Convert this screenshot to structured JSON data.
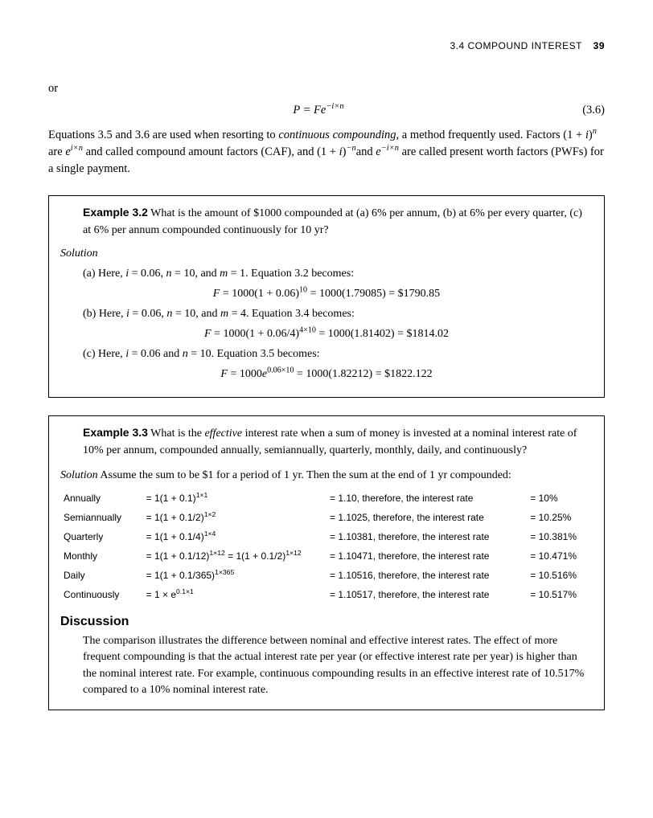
{
  "header": {
    "section": "3.4 COMPOUND INTEREST",
    "page": "39"
  },
  "lead": {
    "or": "or",
    "eq": "P = Fe",
    "eq_sup": "−i×n",
    "eq_num": "(3.6)",
    "p1a": "Equations 3.5 and 3.6 are used when resorting to ",
    "p1b": "continuous compounding",
    "p1c": ", a method frequently used. Factors (1 + ",
    "p1d": "i",
    "p1e": ")",
    "p1f": "n",
    "p1g": " are ",
    "p1h": "e",
    "p1i": "i×n",
    "p1j": " and called compound amount factors (CAF), and  (1 + ",
    "p1k": "i",
    "p1l": ")",
    "p1m": "−n",
    "p1n": "and ",
    "p1o": "e",
    "p1p": "−i×n",
    "p1q": " are called present worth factors (PWFs) for a single payment."
  },
  "ex32": {
    "label": "Example 3.2",
    "q": "  What is the amount of $1000 compounded at (a) 6% per annum, (b) at 6% per every quarter, (c) at 6% per annum compounded continuously for 10 yr?",
    "sol": "Solution",
    "a_t1": "(a) Here, ",
    "a_t2": "i",
    "a_t3": " = 0.06, ",
    "a_t4": "n",
    "a_t5": " = 10, and ",
    "a_t6": "m",
    "a_t7": " = 1. Equation 3.2 becomes:",
    "a_eq_pre": "F",
    "a_eq": " = 1000(1 + 0.06)",
    "a_eq_sup": "10",
    "a_eq_post": " = 1000(1.79085) = $1790.85",
    "b_t1": "(b) Here, ",
    "b_t2": "i",
    "b_t3": " = 0.06, ",
    "b_t4": "n",
    "b_t5": " = 10, and ",
    "b_t6": "m",
    "b_t7": " = 4. Equation 3.4 becomes:",
    "b_eq_pre": "F",
    "b_eq": " = 1000(1 + 0.06/4)",
    "b_eq_sup": "4×10",
    "b_eq_post": " = 1000(1.81402) = $1814.02",
    "c_t1": "(c) Here, ",
    "c_t2": "i",
    "c_t3": " = 0.06 and ",
    "c_t4": "n",
    "c_t5": " = 10. Equation 3.5 becomes:",
    "c_eq_pre": "F",
    "c_eq": " = 1000",
    "c_eq_e": "e",
    "c_eq_sup": "0.06×10",
    "c_eq_post": " = 1000(1.82212) = $1822.122"
  },
  "ex33": {
    "label": "Example 3.3",
    "q1": "  What is the ",
    "q_em": "effective",
    "q2": " interest rate when a sum of money is invested at a nominal interest rate of 10% per annum, compounded annually, semiannually, quarterly, monthly, daily, and continuously?",
    "sol_a": "Solution",
    "sol_b": "  Assume the sum to be $1 for a period of 1 yr. Then the sum at the end of 1 yr compounded:",
    "rows": [
      {
        "period": "Annually",
        "expr_a": "= 1(1 + 0.1)",
        "expr_sup": "1×1",
        "expr_b": "",
        "res": "= 1.10, therefore, the interest rate",
        "rate": "= 10%"
      },
      {
        "period": "Semiannually",
        "expr_a": "= 1(1 + 0.1/2)",
        "expr_sup": "1×2",
        "expr_b": "",
        "res": "= 1.1025, therefore, the interest rate",
        "rate": "= 10.25%"
      },
      {
        "period": "Quarterly",
        "expr_a": "= 1(1 + 0.1/4)",
        "expr_sup": "1×4",
        "expr_b": "",
        "res": "= 1.10381, therefore, the interest rate",
        "rate": "= 10.381%"
      },
      {
        "period": "Monthly",
        "expr_a": "= 1(1 + 0.1/12)",
        "expr_sup": "1×12",
        "expr_b": " = 1(1 + 0.1/2)",
        "expr_sup2": "1×12",
        "res": "= 1.10471, therefore, the interest rate",
        "rate": "= 10.471%"
      },
      {
        "period": "Daily",
        "expr_a": "= 1(1 + 0.1/365)",
        "expr_sup": "1×365",
        "expr_b": "",
        "res": "= 1.10516, therefore, the interest rate",
        "rate": "= 10.516%"
      },
      {
        "period": "Continuously",
        "expr_a": "= 1 × e",
        "expr_sup": "0.1×1",
        "expr_b": "",
        "res": "= 1.10517, therefore, the interest rate",
        "rate": "= 10.517%"
      }
    ],
    "disc_h": "Discussion",
    "disc_p": "The comparison illustrates the difference between nominal and effective interest rates. The effect of more frequent compounding is that the actual interest rate per year (or effective interest rate per year) is higher than the nominal interest rate. For example, continuous compounding results in an effective interest rate of 10.517% compared to a 10% nominal interest rate."
  }
}
